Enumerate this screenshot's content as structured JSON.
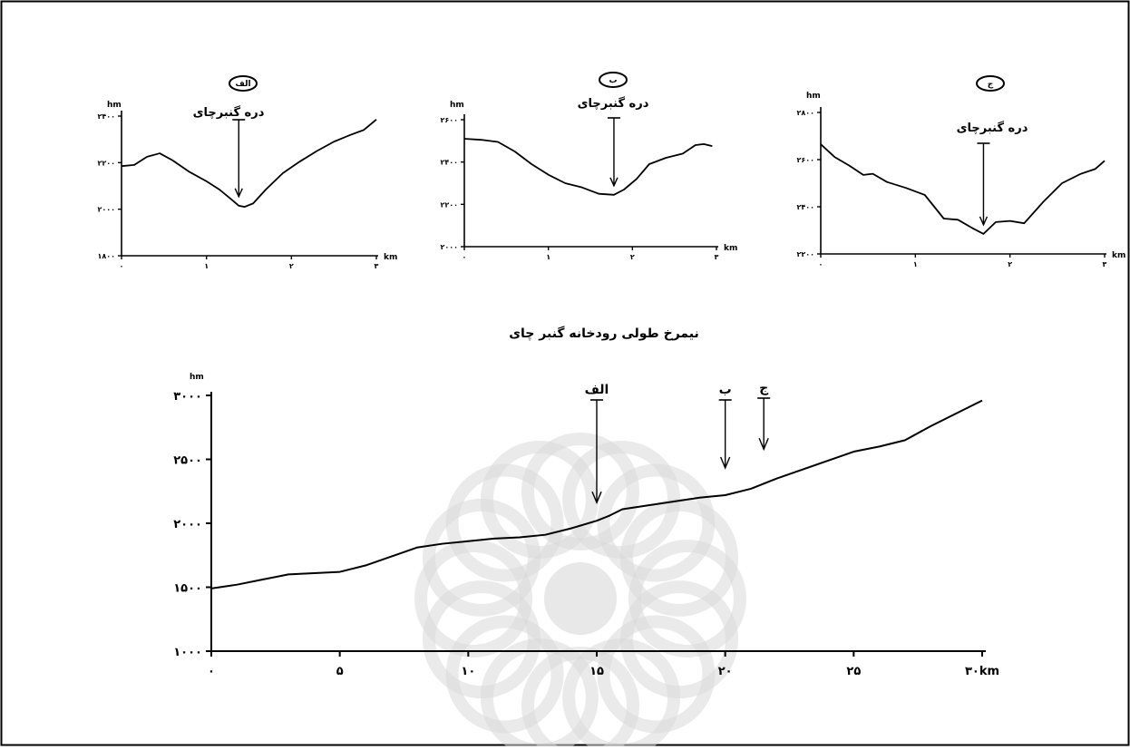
{
  "colors": {
    "line": "#000000",
    "watermark": "#d9d9d9",
    "background": "#ffffff"
  },
  "chart_data": [
    {
      "type": "line",
      "badge": "الف",
      "annotation": "دره گنبرچای",
      "ylabel": "hm",
      "xlabel": "km",
      "ylim": [
        1800,
        2400
      ],
      "xlim": [
        0,
        3
      ],
      "xticks": [
        0,
        1,
        2,
        3
      ],
      "xtick_labels": [
        "۰",
        "۱",
        "۲",
        "۳"
      ],
      "yticks": [
        1800,
        2000,
        2200,
        2400
      ],
      "ytick_labels": [
        "۱۸۰۰",
        "۲۰۰۰",
        "۲۲۰۰",
        "۲۴۰۰"
      ],
      "arrow_x": 1.38,
      "x": [
        0,
        0.15,
        0.3,
        0.45,
        0.6,
        0.8,
        1.0,
        1.15,
        1.3,
        1.38,
        1.45,
        1.55,
        1.7,
        1.9,
        2.1,
        2.3,
        2.5,
        2.7,
        2.85,
        3.0
      ],
      "y": [
        2185,
        2190,
        2225,
        2240,
        2210,
        2160,
        2120,
        2085,
        2040,
        2015,
        2010,
        2025,
        2085,
        2155,
        2205,
        2250,
        2290,
        2320,
        2340,
        2385
      ]
    },
    {
      "type": "line",
      "badge": "ب",
      "annotation": "دره گنبرچای",
      "ylabel": "hm",
      "xlabel": "km",
      "ylim": [
        2000,
        2600
      ],
      "xlim": [
        0,
        3
      ],
      "xticks": [
        0,
        1,
        2,
        3
      ],
      "xtick_labels": [
        "۰",
        "۱",
        "۲",
        "۳"
      ],
      "yticks": [
        2000,
        2200,
        2400,
        2600
      ],
      "ytick_labels": [
        "۲۰۰۰",
        "۲۲۰۰",
        "۲۴۰۰",
        "۲۶۰۰"
      ],
      "arrow_x": 1.78,
      "x": [
        0,
        0.2,
        0.4,
        0.6,
        0.8,
        1.0,
        1.2,
        1.4,
        1.6,
        1.78,
        1.9,
        2.05,
        2.2,
        2.4,
        2.6,
        2.75,
        2.85,
        2.95
      ],
      "y": [
        2510,
        2505,
        2495,
        2450,
        2390,
        2340,
        2300,
        2280,
        2250,
        2245,
        2270,
        2320,
        2390,
        2420,
        2440,
        2480,
        2485,
        2475
      ]
    },
    {
      "type": "line",
      "badge": "ج",
      "annotation": "دره گنبرچای",
      "ylabel": "hm",
      "xlabel": "km",
      "ylim": [
        2200,
        2800
      ],
      "xlim": [
        0,
        3
      ],
      "xticks": [
        0,
        1,
        2,
        3
      ],
      "xtick_labels": [
        "۰",
        "۱",
        "۲",
        "۳"
      ],
      "yticks": [
        2200,
        2400,
        2600,
        2800
      ],
      "ytick_labels": [
        "۲۲۰۰",
        "۲۴۰۰",
        "۲۶۰۰",
        "۲۸۰۰"
      ],
      "arrow_x": 1.72,
      "x": [
        0,
        0.15,
        0.3,
        0.45,
        0.55,
        0.7,
        0.9,
        1.1,
        1.3,
        1.45,
        1.6,
        1.72,
        1.85,
        2.0,
        2.15,
        2.35,
        2.55,
        2.75,
        2.9,
        3.0
      ],
      "y": [
        2665,
        2610,
        2575,
        2535,
        2540,
        2505,
        2480,
        2450,
        2350,
        2345,
        2310,
        2285,
        2335,
        2340,
        2330,
        2420,
        2500,
        2540,
        2560,
        2595
      ]
    },
    {
      "type": "line",
      "title": "نیمرخ طولی رودخانه گنبر چای",
      "ylabel": "hm",
      "xlabel": "km",
      "ylim": [
        1000,
        3000
      ],
      "xlim": [
        0,
        30
      ],
      "xticks": [
        0,
        5,
        10,
        15,
        20,
        25,
        30
      ],
      "xtick_labels": [
        "۰",
        "۵",
        "۱۰",
        "۱۵",
        "۲۰",
        "۲۵",
        "۳۰km"
      ],
      "yticks": [
        1000,
        1500,
        2000,
        2500,
        3000
      ],
      "ytick_labels": [
        "۱۰۰۰",
        "۱۵۰۰",
        "۲۰۰۰",
        "۲۵۰۰",
        "۳۰۰۰"
      ],
      "markers": [
        {
          "label": "الف",
          "x": 15
        },
        {
          "label": "ب",
          "x": 20
        },
        {
          "label": "ج",
          "x": 21.5
        }
      ],
      "x": [
        0,
        1,
        2,
        3,
        4,
        5,
        6,
        7,
        8,
        9,
        10,
        11,
        12,
        13,
        14,
        15,
        15.5,
        16,
        17,
        18,
        19,
        20,
        21,
        22,
        23,
        24,
        25,
        26,
        27,
        28,
        29,
        30
      ],
      "y": [
        1490,
        1520,
        1560,
        1600,
        1610,
        1620,
        1670,
        1740,
        1810,
        1840,
        1860,
        1880,
        1890,
        1910,
        1960,
        2020,
        2060,
        2110,
        2140,
        2170,
        2200,
        2220,
        2270,
        2350,
        2420,
        2490,
        2560,
        2600,
        2650,
        2760,
        2860,
        2960
      ]
    }
  ]
}
